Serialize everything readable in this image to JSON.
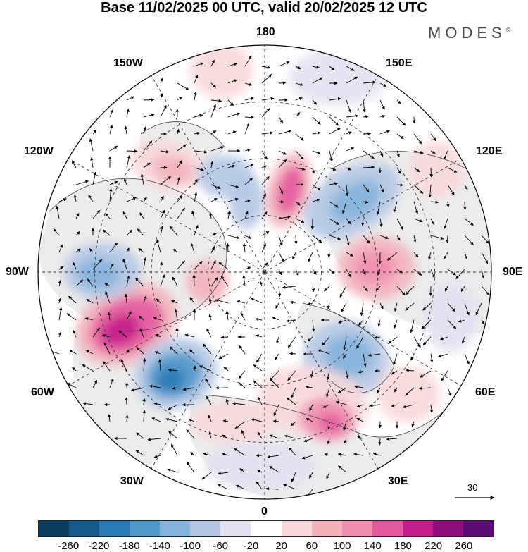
{
  "header": {
    "title": "Base 11/02/2025 00 UTC, valid 20/02/2025 12 UTC",
    "brand": "MODES",
    "brand_mark": "©"
  },
  "map": {
    "projection": "north-polar-stereographic",
    "lon_labels": {
      "top": "180",
      "bottom": "0",
      "left": "90W",
      "right": "90E",
      "upper_left_1": "150W",
      "upper_left_2": "120W",
      "upper_right_1": "150E",
      "upper_right_2": "120E",
      "lower_left_1": "60W",
      "lower_left_2": "30W",
      "lower_right_1": "60E",
      "lower_right_2": "30E"
    },
    "reference_vector": "30"
  },
  "colorbar": {
    "colors": [
      "#0b3c5d",
      "#155a8a",
      "#2a78b4",
      "#4f98c9",
      "#85b3dc",
      "#b4c6e4",
      "#e2e2f1",
      "#ffffff",
      "#f8d8da",
      "#f3b3bb",
      "#ef8fb0",
      "#e45a9e",
      "#c41e8a",
      "#8d0f7d",
      "#5a0c73"
    ],
    "tick_labels": [
      "-260",
      "-220",
      "-180",
      "-140",
      "-100",
      "-60",
      "-20",
      "20",
      "60",
      "100",
      "140",
      "180",
      "220",
      "260"
    ]
  }
}
